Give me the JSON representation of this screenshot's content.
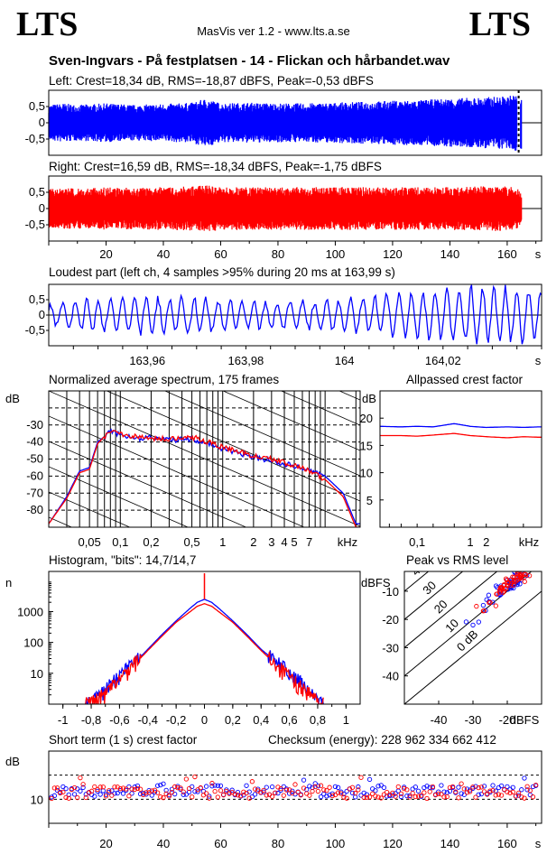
{
  "header": {
    "logo_left": "LTS",
    "logo_right": "LTS",
    "app_title": "MasVis ver 1.2 - www.lts.a.se",
    "file_title": "Sven-Ingvars - På festplatsen - 14 - Flickan och hårbandet.wav"
  },
  "colors": {
    "left": "#0000ff",
    "right": "#ff0000"
  },
  "chart_data": [
    {
      "id": "left-waveform",
      "type": "area",
      "title": "Left: Crest=18,34 dB, RMS=-18,87 dBFS, Peak=-0,53 dBFS",
      "yticks": [
        "0,5",
        "0",
        "-0,5"
      ],
      "ylim": [
        -1,
        1
      ],
      "xlim": [
        0,
        172
      ],
      "marker_s": 164,
      "envelope_s": [
        0,
        5,
        10,
        20,
        30,
        40,
        50,
        55,
        60,
        70,
        80,
        90,
        100,
        110,
        120,
        130,
        140,
        150,
        160,
        164,
        165
      ],
      "envelope": [
        0.55,
        0.6,
        0.55,
        0.6,
        0.55,
        0.58,
        0.62,
        0.75,
        0.6,
        0.62,
        0.6,
        0.6,
        0.62,
        0.65,
        0.68,
        0.7,
        0.75,
        0.78,
        0.82,
        0.9,
        0.9
      ]
    },
    {
      "id": "right-waveform",
      "type": "area",
      "title": "Right: Crest=16,59 dB, RMS=-18,34 dBFS, Peak=-1,75 dBFS",
      "yticks": [
        "0,5",
        "0",
        "-0,5"
      ],
      "xticks": [
        "20",
        "40",
        "60",
        "80",
        "100",
        "120",
        "140",
        "160"
      ],
      "xunit": "s",
      "ylim": [
        -1,
        1
      ],
      "xlim": [
        0,
        172
      ],
      "envelope_s": [
        0,
        5,
        10,
        20,
        30,
        40,
        50,
        55,
        60,
        70,
        80,
        90,
        100,
        110,
        120,
        130,
        140,
        150,
        160,
        164,
        165
      ],
      "envelope": [
        0.6,
        0.62,
        0.62,
        0.65,
        0.64,
        0.66,
        0.68,
        0.72,
        0.66,
        0.66,
        0.66,
        0.66,
        0.66,
        0.66,
        0.66,
        0.66,
        0.66,
        0.68,
        0.7,
        0.6,
        0.4
      ]
    },
    {
      "id": "loudest-part",
      "type": "line",
      "title": "Loudest part (left  ch, 4 samples >95% during 20 ms at 163,99 s)",
      "yticks": [
        "0,5",
        "0",
        "-0,5"
      ],
      "xticks": [
        "163,96",
        "163,98",
        "164",
        "164,02"
      ],
      "xunit": "s",
      "xlim": [
        163.94,
        164.04
      ],
      "ylim": [
        -1,
        1
      ]
    },
    {
      "id": "average-spectrum",
      "type": "line",
      "title": "Normalized average spectrum, 175 frames",
      "ylabel": "dB",
      "yticks": [
        "-30",
        "-40",
        "-50",
        "-60",
        "-70",
        "-80"
      ],
      "xticks": [
        "0,05",
        "0,1",
        "0,2",
        "0,5",
        "1",
        "2",
        "3",
        "4",
        "5",
        "7"
      ],
      "xunit": "kHz",
      "ylim": [
        -90,
        -10
      ],
      "freq_khz": [
        0.02,
        0.03,
        0.04,
        0.05,
        0.06,
        0.08,
        0.1,
        0.15,
        0.2,
        0.3,
        0.5,
        0.7,
        1,
        1.5,
        2,
        3,
        4,
        5,
        7,
        10,
        15,
        20
      ],
      "series": [
        {
          "values": [
            -88,
            -72,
            -57,
            -55,
            -40,
            -34,
            -36,
            -38,
            -37,
            -39,
            -38,
            -41,
            -44,
            -47,
            -49,
            -51,
            -53,
            -54,
            -56,
            -60,
            -70,
            -88
          ]
        },
        {
          "values": [
            -88,
            -73,
            -58,
            -56,
            -41,
            -33,
            -35,
            -37,
            -38,
            -38,
            -37,
            -40,
            -43,
            -46,
            -48,
            -50,
            -52,
            -54,
            -57,
            -62,
            -72,
            -90
          ]
        }
      ]
    },
    {
      "id": "allpassed-crest",
      "type": "line",
      "title": "Allpassed crest factor",
      "ylabel": "dB",
      "yticks": [
        "20",
        "15",
        "10",
        "5"
      ],
      "xticks": [
        "0,1",
        "1",
        "2"
      ],
      "xunit": "kHz",
      "ylim": [
        0,
        25
      ],
      "freq_khz": [
        0.02,
        0.05,
        0.1,
        0.2,
        0.5,
        1,
        2,
        5,
        10,
        20
      ],
      "series": [
        {
          "values": [
            18.5,
            18.4,
            18.5,
            18.4,
            19.0,
            18.5,
            18.3,
            18.4,
            18.3,
            18.4
          ]
        },
        {
          "values": [
            16.8,
            16.8,
            16.7,
            16.9,
            17.2,
            16.8,
            16.6,
            16.4,
            16.6,
            16.5
          ]
        }
      ]
    },
    {
      "id": "histogram",
      "type": "line",
      "title": "Histogram, \"bits\": 14,7/14,7",
      "ylabel": "n",
      "yticks": [
        "1000",
        "100",
        "10"
      ],
      "xticks": [
        "-1",
        "-0,8",
        "-0,6",
        "-0,4",
        "-0,2",
        "0",
        "0,2",
        "0,4",
        "0,6",
        "0,8",
        "1"
      ],
      "xlim": [
        -1.1,
        1.1
      ],
      "x": [
        -0.82,
        -0.7,
        -0.6,
        -0.5,
        -0.4,
        -0.3,
        -0.2,
        -0.1,
        -0.05,
        0,
        0.05,
        0.1,
        0.2,
        0.3,
        0.4,
        0.5,
        0.6,
        0.7,
        0.82
      ],
      "series": [
        {
          "values": [
            1,
            3,
            8,
            20,
            60,
            180,
            500,
            1300,
            2000,
            2500,
            2000,
            1300,
            500,
            180,
            60,
            25,
            10,
            4,
            1
          ]
        },
        {
          "values": [
            1,
            2,
            6,
            18,
            55,
            160,
            450,
            1000,
            1500,
            1800,
            1500,
            1000,
            450,
            160,
            55,
            20,
            7,
            3,
            1
          ]
        }
      ]
    },
    {
      "id": "peak-vs-rms",
      "type": "scatter",
      "title": "Peak vs RMS level",
      "ylabel": "dBFS",
      "xunit": "dBFS",
      "yticks": [
        "-10",
        "-20",
        "-30",
        "-40"
      ],
      "xticks": [
        "-40",
        "-30",
        "-20"
      ],
      "xlim": [
        -50,
        -10
      ],
      "ylim": [
        -50,
        -3
      ],
      "diagonals": [
        "40",
        "30",
        "20",
        "10",
        "0 dB"
      ],
      "series": [
        {
          "x": [
            -30,
            -27,
            -26,
            -23,
            -22,
            -21,
            -20,
            -19,
            -18,
            -17,
            -16,
            -15,
            -22,
            -20,
            -18,
            -16,
            -19,
            -17
          ],
          "y": [
            -22,
            -15,
            -13,
            -11,
            -9,
            -8,
            -6,
            -7,
            -5,
            -4,
            -6,
            -5,
            -10,
            -8,
            -6,
            -3,
            -9,
            -7
          ]
        },
        {
          "x": [
            -27,
            -25,
            -23,
            -22,
            -21,
            -20,
            -19,
            -18,
            -17,
            -16,
            -15,
            -20,
            -18,
            -16,
            -21,
            -19,
            -17,
            -15
          ],
          "y": [
            -17,
            -14,
            -11,
            -9,
            -8,
            -7,
            -6,
            -5,
            -4,
            -4,
            -5,
            -8,
            -6,
            -5,
            -10,
            -8,
            -6,
            -4
          ]
        }
      ]
    },
    {
      "id": "short-term-crest",
      "type": "scatter",
      "title": "Short term (1 s) crest factor",
      "checksum": "Checksum (energy):   228 962 334 662 412",
      "ylabel": "dB",
      "yticks": [
        "10"
      ],
      "xticks": [
        "20",
        "40",
        "60",
        "80",
        "100",
        "120",
        "140",
        "160"
      ],
      "xunit": "s",
      "xlim": [
        0,
        172
      ],
      "ylim": [
        0,
        30
      ],
      "mean_left": 13.4,
      "mean_right": 12.8
    }
  ]
}
